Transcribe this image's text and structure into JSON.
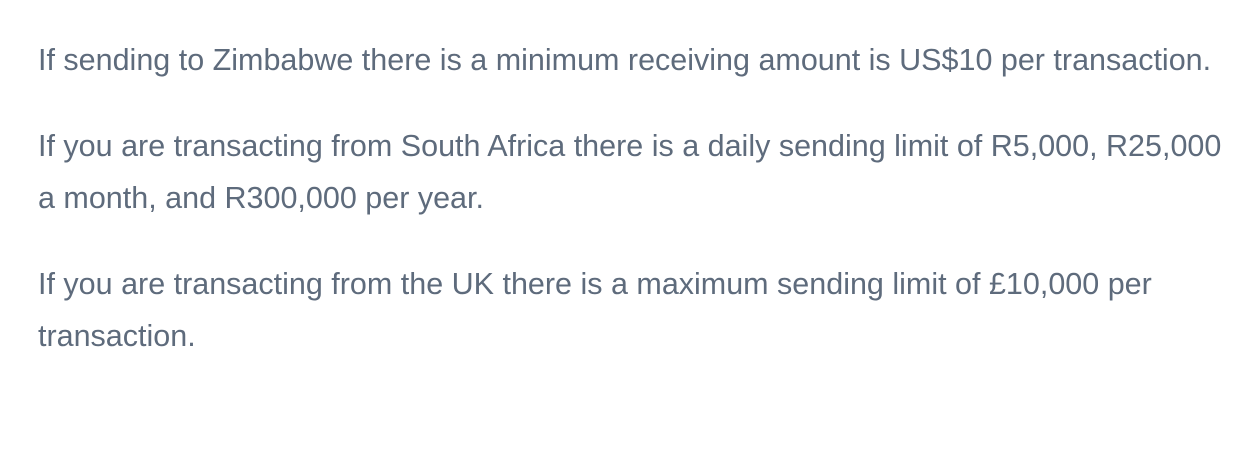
{
  "paragraphs": [
    "If sending to Zimbabwe there is a minimum receiving amount is US$10 per transaction.",
    "If you are transacting from South Africa there is a daily sending limit of R5,000, R25,000 a month, and R300,000 per year.",
    "If you are transacting from the UK there is a maximum sending limit of £10,000 per transaction."
  ],
  "colors": {
    "text": "#5e6b7c",
    "background": "#ffffff"
  }
}
